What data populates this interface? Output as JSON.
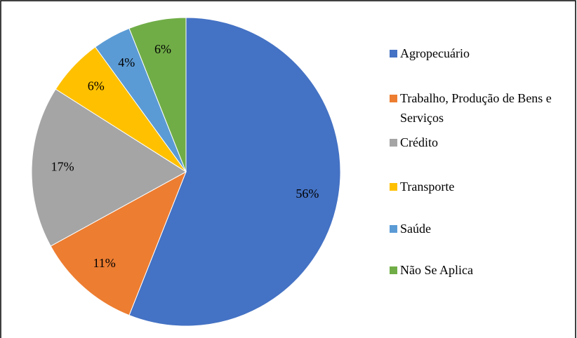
{
  "chart_data": {
    "type": "pie",
    "categories": [
      "Agropecuário",
      "Trabalho, Produção de Bens e Serviços",
      "Crédito",
      "Transporte",
      "Saúde",
      "Não Se Aplica"
    ],
    "values": [
      56,
      11,
      17,
      6,
      4,
      6
    ],
    "value_labels": [
      "56%",
      "11%",
      "17%",
      "6%",
      "4%",
      "6%"
    ],
    "colors": [
      "#4472c4",
      "#ed7d31",
      "#a5a5a5",
      "#ffc000",
      "#5b9bd5",
      "#70ad47"
    ],
    "legend": "right"
  }
}
